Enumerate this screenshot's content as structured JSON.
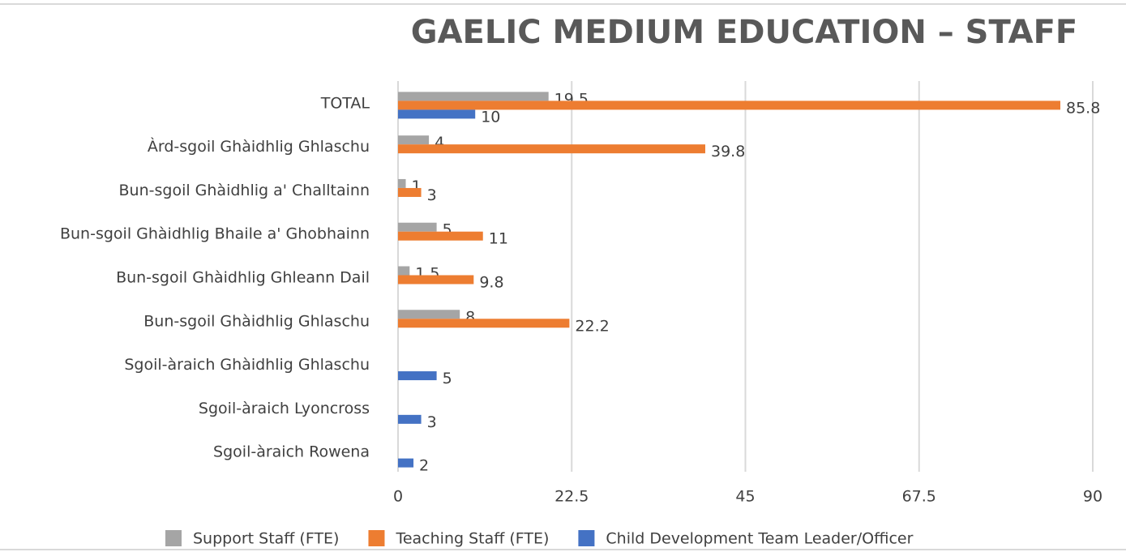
{
  "chart_data": {
    "type": "bar",
    "orientation": "horizontal",
    "title": "GAELIC MEDIUM EDUCATION – STAFF",
    "categories": [
      "TOTAL",
      "Àrd-sgoil Ghàidhlig Ghlaschu",
      "Bun-sgoil Ghàidhlig a' Challtainn",
      "Bun-sgoil Ghàidhlig Bhaile a' Ghobhainn",
      "Bun-sgoil Ghàidhlig Ghleann Dail",
      "Bun-sgoil Ghàidhlig Ghlaschu",
      "Sgoil-àraich Ghàidhlig Ghlaschu",
      "Sgoil-àraich Lyoncross",
      "Sgoil-àraich Rowena"
    ],
    "series": [
      {
        "name": "Support Staff (FTE)",
        "color": "#a5a5a5",
        "values": [
          19.5,
          4,
          1,
          5,
          1.5,
          8,
          null,
          null,
          null
        ]
      },
      {
        "name": "Teaching Staff (FTE)",
        "color": "#ed7d31",
        "values": [
          85.8,
          39.8,
          3,
          11,
          9.8,
          22.2,
          null,
          null,
          null
        ]
      },
      {
        "name": "Child Development Team Leader/Officer",
        "color": "#4472c4",
        "values": [
          10,
          null,
          null,
          null,
          null,
          null,
          5,
          3,
          2
        ]
      }
    ],
    "xlim": [
      0,
      90
    ],
    "xticks": [
      0,
      22.5,
      45,
      67.5,
      90
    ],
    "grid": true,
    "legend": "bottom"
  }
}
